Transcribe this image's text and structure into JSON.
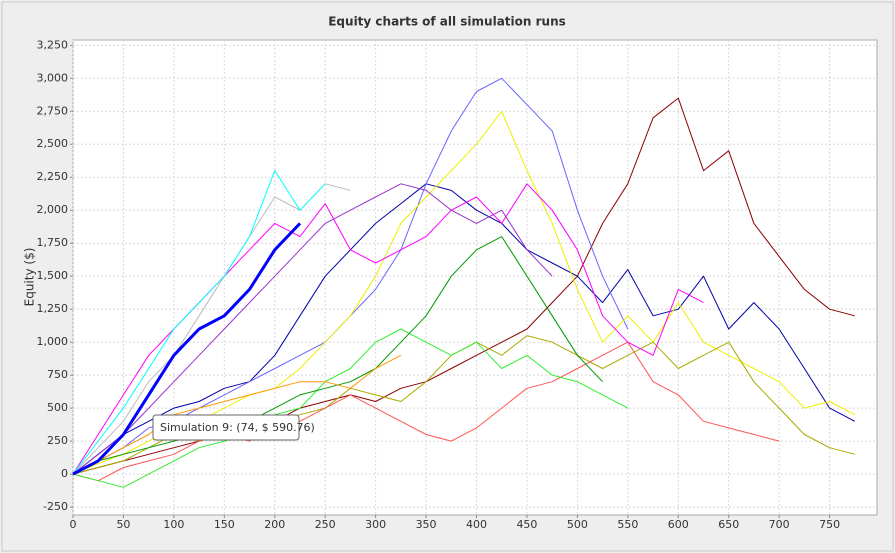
{
  "chart_data": {
    "type": "line",
    "title": "Equity charts of all simulation runs",
    "y_label": "Equity ($)",
    "annotation": "Simulation 9: (74, $ 590.76)",
    "grid": true,
    "xlim": [
      0,
      797
    ],
    "ylim": [
      -310,
      3290
    ],
    "xticks": [
      0,
      50,
      100,
      150,
      200,
      250,
      300,
      350,
      400,
      450,
      500,
      550,
      600,
      650,
      700,
      750
    ],
    "yticks": [
      -250,
      0,
      250,
      500,
      750,
      {
        "value": 1000,
        "label": "1,000"
      },
      {
        "value": 1250,
        "label": "1,250"
      },
      {
        "value": 1500,
        "label": "1,500"
      },
      {
        "value": 1750,
        "label": "1,750"
      },
      {
        "value": 2000,
        "label": "2,000"
      },
      {
        "value": 2250,
        "label": "2,250"
      },
      {
        "value": 2500,
        "label": "2,500"
      },
      {
        "value": 2750,
        "label": "2,750"
      },
      {
        "value": 3000,
        "label": "3,000"
      },
      {
        "value": 3250,
        "label": "3,250"
      }
    ],
    "x": [
      0,
      25,
      50,
      75,
      100,
      125,
      150,
      175,
      200,
      225,
      250,
      275,
      300,
      325,
      350,
      375,
      400,
      425,
      450,
      475,
      500,
      525,
      550,
      575,
      600,
      625,
      650,
      675,
      700,
      725,
      750,
      775
    ],
    "series": [
      {
        "color": "#8b0000",
        "values": [
          0,
          50,
          100,
          150,
          200,
          250,
          300,
          350,
          400,
          500,
          550,
          600,
          550,
          650,
          700,
          800,
          900,
          1000,
          1100,
          1300,
          1500,
          1900,
          2200,
          2700,
          2850,
          2300,
          2450,
          1900,
          1650,
          1400,
          1250,
          1200
        ]
      },
      {
        "color": "#0000aa",
        "values": [
          0,
          150,
          300,
          400,
          500,
          550,
          650,
          700,
          900,
          1200,
          1500,
          1700,
          1900,
          2050,
          2200,
          2150,
          2000,
          1900,
          1700,
          1600,
          1500,
          1300,
          1550,
          1200,
          1250,
          1500,
          1100,
          1300,
          1100,
          800,
          500,
          400
        ]
      },
      {
        "color": "#6666ff",
        "values": [
          0,
          100,
          200,
          350,
          400,
          500,
          600,
          700,
          800,
          900,
          1000,
          1200,
          1400,
          1700,
          2200,
          2600,
          2900,
          3000,
          2800,
          2600,
          2000,
          1500,
          1100,
          null,
          null,
          null,
          null,
          null,
          null,
          null,
          null,
          null
        ]
      },
      {
        "color": "#eeee00",
        "values": [
          0,
          80,
          150,
          250,
          350,
          400,
          500,
          600,
          650,
          800,
          1000,
          1200,
          1500,
          1900,
          2100,
          2300,
          2500,
          2750,
          2300,
          1900,
          1400,
          1000,
          1200,
          1000,
          1300,
          1000,
          900,
          800,
          700,
          500,
          550,
          450
        ]
      },
      {
        "color": "#aaaa00",
        "values": [
          0,
          50,
          100,
          200,
          300,
          250,
          300,
          350,
          400,
          450,
          500,
          650,
          600,
          550,
          700,
          900,
          1000,
          900,
          1050,
          1000,
          900,
          800,
          900,
          1000,
          800,
          900,
          1000,
          700,
          500,
          300,
          200,
          150
        ]
      },
      {
        "color": "#ff5555",
        "values": [
          0,
          -50,
          50,
          100,
          150,
          250,
          300,
          250,
          350,
          400,
          500,
          600,
          500,
          400,
          300,
          250,
          350,
          500,
          650,
          700,
          800,
          900,
          1000,
          700,
          600,
          400,
          350,
          300,
          250,
          null,
          null,
          null
        ]
      },
      {
        "color": "#33ee33",
        "values": [
          0,
          -50,
          -100,
          0,
          100,
          200,
          250,
          300,
          450,
          500,
          700,
          800,
          1000,
          1100,
          1000,
          900,
          1000,
          800,
          900,
          750,
          700,
          600,
          500,
          null,
          null,
          null,
          null,
          null,
          null,
          null,
          null,
          null
        ]
      },
      {
        "color": "#ff00ff",
        "values": [
          0,
          300,
          600,
          900,
          1100,
          1300,
          1500,
          1700,
          1900,
          1800,
          2050,
          1700,
          1600,
          1700,
          1800,
          2000,
          2100,
          1900,
          2200,
          2000,
          1700,
          1200,
          1000,
          900,
          1400,
          1300,
          null,
          null,
          null,
          null,
          null,
          null
        ]
      },
      {
        "color": "#009900",
        "values": [
          0,
          100,
          150,
          200,
          250,
          300,
          350,
          400,
          500,
          600,
          650,
          700,
          800,
          1000,
          1200,
          1500,
          1700,
          1800,
          1500,
          1200,
          900,
          700,
          null,
          null,
          null,
          null,
          null,
          null,
          null,
          null,
          null,
          null
        ]
      },
      {
        "color": "#bbbbbb",
        "values": [
          0,
          200,
          400,
          700,
          900,
          1200,
          1500,
          1800,
          2100,
          2000,
          2200,
          2150,
          null,
          null,
          null,
          null,
          null,
          null,
          null,
          null,
          null,
          null,
          null,
          null,
          null,
          null,
          null,
          null,
          null,
          null,
          null,
          null
        ]
      },
      {
        "color": "#9933cc",
        "values": [
          0,
          150,
          300,
          500,
          700,
          900,
          1100,
          1300,
          1500,
          1700,
          1900,
          2000,
          2100,
          2200,
          2150,
          2000,
          1900,
          2000,
          1700,
          1500,
          null,
          null,
          null,
          null,
          null,
          null,
          null,
          null,
          null,
          null,
          null,
          null
        ]
      },
      {
        "color": "#ff9900",
        "values": [
          0,
          100,
          200,
          300,
          450,
          500,
          550,
          600,
          650,
          700,
          700,
          650,
          800,
          900,
          null,
          null,
          null,
          null,
          null,
          null,
          null,
          null,
          null,
          null,
          null,
          null,
          null,
          null,
          null,
          null,
          null,
          null
        ]
      },
      {
        "color": "#00ffff",
        "values": [
          0,
          250,
          500,
          800,
          1100,
          1300,
          1500,
          1800,
          2300,
          2000,
          2200,
          null,
          null,
          null,
          null,
          null,
          null,
          null,
          null,
          null,
          null,
          null,
          null,
          null,
          null,
          null,
          null,
          null,
          null,
          null,
          null,
          null
        ]
      },
      {
        "color": "#0000ff",
        "line_width": 3,
        "values": [
          0,
          100,
          300,
          600,
          900,
          1100,
          1200,
          1400,
          1700,
          1900,
          null,
          null,
          null,
          null,
          null,
          null,
          null,
          null,
          null,
          null,
          null,
          null,
          null,
          null,
          null,
          null,
          null,
          null,
          null,
          null,
          null,
          null
        ]
      }
    ]
  }
}
